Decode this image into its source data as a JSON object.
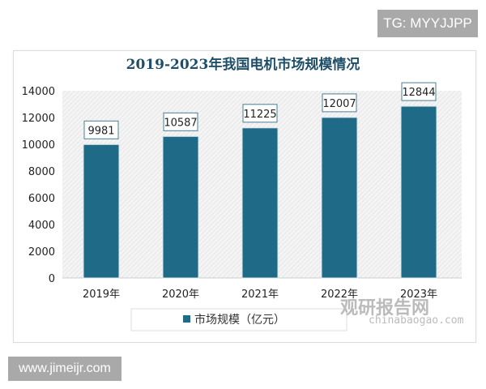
{
  "watermarks": {
    "tg": "TG: MYYJJPP",
    "site": "www.jimeijr.com",
    "brand": "观研报告网",
    "brand_url": "chinabaogao.com"
  },
  "chart_data": {
    "type": "bar",
    "title": "2019-2023年我国电机市场规模情况",
    "categories": [
      "2019年",
      "2020年",
      "2021年",
      "2022年",
      "2023年"
    ],
    "series": [
      {
        "name": "市场规模（亿元）",
        "values": [
          9981,
          10587,
          11225,
          12007,
          12844
        ],
        "color": "#1f6b87"
      }
    ],
    "ylim": [
      0,
      14000
    ],
    "yticks": [
      0,
      2000,
      4000,
      6000,
      8000,
      10000,
      12000,
      14000
    ],
    "legend": "bottom",
    "grid": false
  }
}
